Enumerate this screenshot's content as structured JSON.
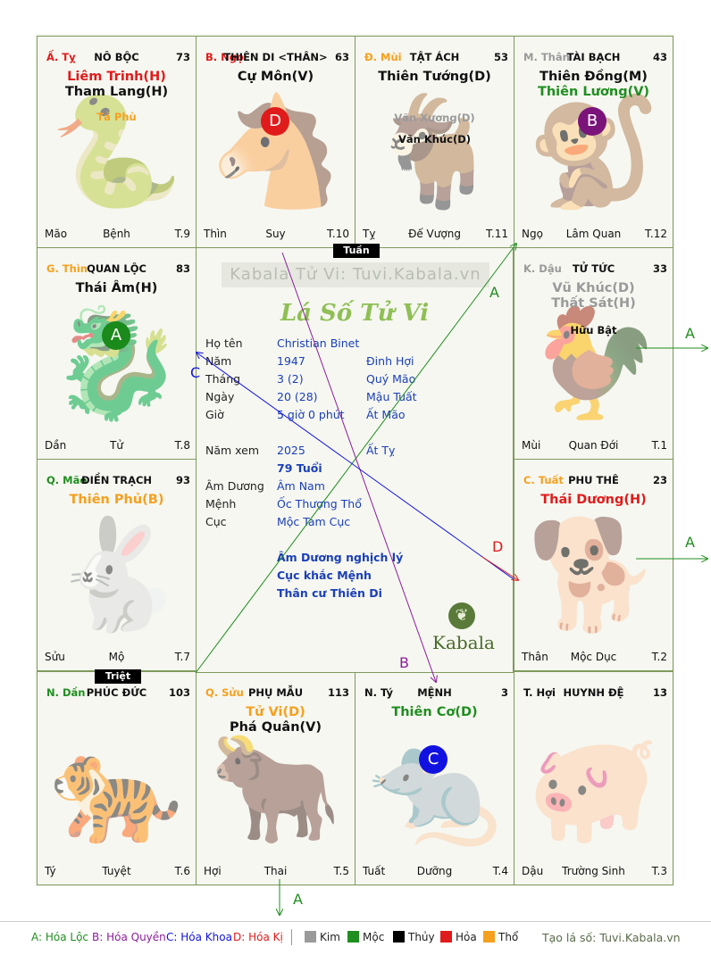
{
  "cells": [
    {
      "can": "Ấ. Tỵ",
      "can_color": "#e01b1b",
      "name": "NÔ BỘC",
      "num": "73",
      "stars": [
        {
          "t": "Liêm Trinh(H)",
          "c": "#e01b1b"
        },
        {
          "t": "Tham Lang(H)",
          "c": "#111111"
        }
      ],
      "minors": [
        {
          "t": "Tả Phù",
          "c": "#f5a01e"
        }
      ],
      "ft": [
        "Mão",
        "Bệnh",
        "T.9"
      ]
    },
    {
      "can": "B. Ngọ",
      "can_color": "#e01b1b",
      "name": "THIÊN DI <THÂN>",
      "num": "63",
      "stars": [
        {
          "t": "Cự Môn(V)",
          "c": "#111111"
        }
      ],
      "minors": [],
      "ft": [
        "Thìn",
        "Suy",
        "T.10"
      ]
    },
    {
      "can": "Đ. Mùi",
      "can_color": "#f5a01e",
      "name": "TẬT ÁCH",
      "num": "53",
      "stars": [
        {
          "t": "Thiên Tướng(D)",
          "c": "#111111"
        }
      ],
      "minors": [
        {
          "t": "Văn Xương(D)",
          "c": "#9a9a9a"
        },
        {
          "t": "Văn Khúc(D)",
          "c": "#111111"
        }
      ],
      "ft": [
        "Tỵ",
        "Đế Vượng",
        "T.11"
      ]
    },
    {
      "can": "M. Thân",
      "can_color": "#9a9a9a",
      "name": "TÀI BẠCH",
      "num": "43",
      "stars": [
        {
          "t": "Thiên Đồng(M)",
          "c": "#111111"
        },
        {
          "t": "Thiên Lương(V)",
          "c": "#1f8e1f"
        }
      ],
      "minors": [],
      "ft": [
        "Ngọ",
        "Lâm Quan",
        "T.12"
      ]
    },
    {
      "can": "G. Thìn",
      "can_color": "#f5a01e",
      "name": "QUAN LỘC",
      "num": "83",
      "stars": [
        {
          "t": "Thái Âm(H)",
          "c": "#111111"
        }
      ],
      "minors": [],
      "ft": [
        "Dần",
        "Tử",
        "T.8"
      ]
    },
    {
      "can": "K. Dậu",
      "can_color": "#9a9a9a",
      "name": "TỬ TỨC",
      "num": "33",
      "stars": [
        {
          "t": "Vũ Khúc(D)",
          "c": "#9a9a9a"
        },
        {
          "t": "Thất Sát(H)",
          "c": "#9a9a9a"
        }
      ],
      "minors": [
        {
          "t": "Hữu Bật",
          "c": "#111111"
        }
      ],
      "ft": [
        "Mùi",
        "Quan Đới",
        "T.1"
      ]
    },
    {
      "can": "Q. Mão",
      "can_color": "#1f8e1f",
      "name": "ĐIỀN TRẠCH",
      "num": "93",
      "stars": [
        {
          "t": "Thiên Phủ(B)",
          "c": "#f5a01e"
        }
      ],
      "minors": [],
      "ft": [
        "Sửu",
        "Mộ",
        "T.7"
      ]
    },
    {
      "can": "C. Tuất",
      "can_color": "#f5a01e",
      "name": "PHU THÊ",
      "num": "23",
      "stars": [
        {
          "t": "Thái Dương(H)",
          "c": "#e01b1b"
        }
      ],
      "minors": [],
      "ft": [
        "Thân",
        "Mộc Dục",
        "T.2"
      ]
    },
    {
      "can": "N. Dần",
      "can_color": "#1f8e1f",
      "name": "PHÚC ĐỨC",
      "num": "103",
      "stars": [],
      "minors": [],
      "ft": [
        "Tý",
        "Tuyệt",
        "T.6"
      ]
    },
    {
      "can": "Q. Sửu",
      "can_color": "#f5a01e",
      "name": "PHỤ MẪU",
      "num": "113",
      "stars": [
        {
          "t": "Tử Vi(D)",
          "c": "#f5a01e"
        },
        {
          "t": "Phá Quân(V)",
          "c": "#111111"
        }
      ],
      "minors": [],
      "ft": [
        "Hợi",
        "Thai",
        "T.5"
      ]
    },
    {
      "can": "N. Tý",
      "can_color": "#111111",
      "name": "MỆNH",
      "num": "3",
      "stars": [
        {
          "t": "Thiên Cơ(D)",
          "c": "#1f8e1f"
        }
      ],
      "minors": [],
      "ft": [
        "Tuất",
        "Dưỡng",
        "T.4"
      ]
    },
    {
      "can": "T. Hợi",
      "can_color": "#111111",
      "name": "HUYNH ĐỆ",
      "num": "13",
      "stars": [],
      "minors": [],
      "ft": [
        "Dậu",
        "Trường Sinh",
        "T.3"
      ]
    }
  ],
  "circles": {
    "A": "A",
    "B": "B",
    "C": "C",
    "D": "D"
  },
  "banners": {
    "tuan": "Tuần",
    "triet": "Triệt"
  },
  "center": {
    "watermark": "Kabala Tử Vi: Tuvi.Kabala.vn",
    "script_title": "Lá Số Tử Vi",
    "labels": {
      "name": "Họ tên",
      "year": "Năm",
      "month": "Tháng",
      "day": "Ngày",
      "hour": "Giờ",
      "view_year": "Năm xem",
      "am_duong": "Âm Dương",
      "menh": "Mệnh",
      "cuc": "Cục"
    },
    "name": "Christian Binet",
    "year": "1947",
    "year_can": "Đinh Hợi",
    "month": "3  (2)",
    "month_can": "Quý Mão",
    "day": "20  (28)",
    "day_can": "Mậu Tuất",
    "hour": "5 giờ 0 phút",
    "hour_can": "Ất Mão",
    "view_year": "2025",
    "view_can": "Ất Tỵ",
    "age": "79 Tuổi",
    "am_duong": "Âm Nam",
    "menh": "Ốc Thượng Thổ",
    "cuc": "Mộc Tam Cục",
    "notes": [
      "Âm Dương nghịch lý",
      "Cục khắc Mệnh",
      "Thân cư Thiên Di"
    ],
    "logo": "Kabala"
  },
  "arrow_labels": {
    "a": "A",
    "b": "B",
    "c": "C",
    "d": "D"
  },
  "legend": {
    "hoa_loc": "A: Hóa Lộc",
    "hoa_quyen": "B: Hóa Quyền",
    "hoa_khoa": "C: Hóa Khoa",
    "hoa_ki": "D: Hóa Kị",
    "kim": "Kim",
    "moc": "Mộc",
    "thuy": "Thủy",
    "hoa": "Hỏa",
    "tho": "Thổ",
    "site": "Tạo lá số: Tuvi.Kabala.vn"
  },
  "colors": {
    "kim": "#9a9a9a",
    "moc": "#1f8e1f",
    "thuy": "#000000",
    "hoa": "#e01b1b",
    "tho": "#f5a01e",
    "circle_a": "#1a8a1a",
    "circle_b": "#7a147a",
    "circle_c": "#1212e0",
    "circle_d": "#e01b1b"
  }
}
